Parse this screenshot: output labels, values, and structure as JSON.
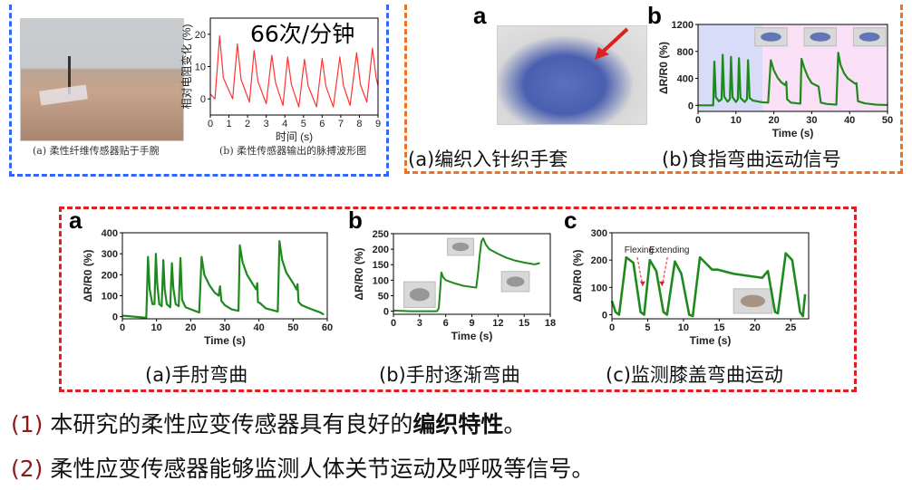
{
  "top_left": {
    "photo_caption": "(a) 柔性纤维传感器贴于手腕",
    "chart_caption": "(b) 柔性传感器输出的脉搏波形图",
    "rate_label": "66次/分钟",
    "border_color": "#3366ff"
  },
  "top_right": {
    "panel_a": "a",
    "panel_b": "b",
    "caption_a": "(a)编织入针织手套",
    "caption_b": "(b)食指弯曲运动信号",
    "border_color": "#f07020",
    "arrow_color": "#e02020"
  },
  "bottom_box": {
    "panel_a": "a",
    "panel_b": "b",
    "panel_c": "c",
    "caption_a": "(a)手肘弯曲",
    "caption_b": "(b)手肘逐渐弯曲",
    "caption_c": "(c)监测膝盖弯曲运动",
    "border_color": "#e02020"
  },
  "conclusions": [
    {
      "num": "(1)",
      "text_before": "本研究的柔性应变传感器具有良好的",
      "bold": "编织特性",
      "text_after": "。"
    },
    {
      "num": "(2)",
      "text_before": "柔性应变传感器能够监测人体关节运动及呼吸等信号。",
      "bold": "",
      "text_after": ""
    }
  ],
  "chart_data": [
    {
      "id": "pulse",
      "type": "line",
      "xlabel": "时间 (s)",
      "ylabel": "相对电阻变化 (%)",
      "xlim": [
        0,
        9
      ],
      "ylim": [
        -5,
        25
      ],
      "xticks": [
        0,
        1,
        2,
        3,
        4,
        5,
        6,
        7,
        8,
        9
      ],
      "yticks": [
        0,
        10,
        20
      ],
      "color": "#ff3333",
      "grid": false,
      "series": [
        {
          "points": [
            [
              0,
              1.5
            ],
            [
              0.25,
              0
            ],
            [
              0.5,
              19.5
            ],
            [
              0.7,
              6.5
            ],
            [
              1.2,
              0
            ],
            [
              1.45,
              17
            ],
            [
              1.65,
              6
            ],
            [
              2.1,
              -1
            ],
            [
              2.35,
              15
            ],
            [
              2.55,
              5.5
            ],
            [
              3.0,
              -1.5
            ],
            [
              3.3,
              13.5
            ],
            [
              3.5,
              5
            ],
            [
              3.9,
              -2
            ],
            [
              4.15,
              13
            ],
            [
              4.35,
              4.5
            ],
            [
              4.75,
              -2.5
            ],
            [
              5.05,
              12.3
            ],
            [
              5.25,
              4
            ],
            [
              5.7,
              -2.5
            ],
            [
              6.0,
              12.5
            ],
            [
              6.2,
              4
            ],
            [
              6.6,
              -2.5
            ],
            [
              6.95,
              13
            ],
            [
              7.15,
              4
            ],
            [
              7.5,
              -2
            ],
            [
              7.85,
              14.3
            ],
            [
              8.05,
              4.5
            ],
            [
              8.4,
              -1
            ],
            [
              8.7,
              15.7
            ],
            [
              8.9,
              6.5
            ],
            [
              9,
              4
            ]
          ]
        }
      ]
    },
    {
      "id": "finger",
      "type": "line",
      "xlabel": "Time (s)",
      "ylabel": "ΔR/R0 (%)",
      "xlim": [
        0,
        50
      ],
      "ylim": [
        -90,
        1200
      ],
      "xticks": [
        0,
        10,
        20,
        30,
        40,
        50
      ],
      "yticks": [
        0,
        400,
        800,
        1200
      ],
      "color": "#1e8a1e",
      "grid": false,
      "background_regions": [
        {
          "x": [
            0,
            17
          ],
          "color": "#d8dcf8"
        },
        {
          "x": [
            17,
            50
          ],
          "color": "#fae0f6"
        }
      ],
      "series": [
        {
          "points": [
            [
              0,
              0
            ],
            [
              4,
              0
            ],
            [
              4.3,
              650
            ],
            [
              4.7,
              120
            ],
            [
              5.5,
              60
            ],
            [
              6.2,
              90
            ],
            [
              6.5,
              750
            ],
            [
              6.9,
              130
            ],
            [
              7.8,
              55
            ],
            [
              8.4,
              90
            ],
            [
              8.7,
              720
            ],
            [
              9.1,
              120
            ],
            [
              10,
              50
            ],
            [
              10.5,
              90
            ],
            [
              10.8,
              700
            ],
            [
              11.2,
              110
            ],
            [
              12.3,
              50
            ],
            [
              12.9,
              90
            ],
            [
              13.2,
              670
            ],
            [
              13.6,
              110
            ],
            [
              14.5,
              70
            ],
            [
              17,
              45
            ],
            [
              18.5,
              40
            ],
            [
              19.2,
              670
            ],
            [
              20,
              520
            ],
            [
              21,
              410
            ],
            [
              22,
              340
            ],
            [
              23,
              300
            ],
            [
              23.3,
              350
            ],
            [
              23.5,
              90
            ],
            [
              24.5,
              40
            ],
            [
              27,
              25
            ],
            [
              27.3,
              690
            ],
            [
              28,
              560
            ],
            [
              29,
              420
            ],
            [
              30,
              330
            ],
            [
              31.8,
              280
            ],
            [
              32.4,
              40
            ],
            [
              34,
              20
            ],
            [
              36.5,
              10
            ],
            [
              37,
              780
            ],
            [
              37.6,
              600
            ],
            [
              38.5,
              480
            ],
            [
              39.5,
              400
            ],
            [
              41.5,
              320
            ],
            [
              41.8,
              330
            ],
            [
              42.2,
              60
            ],
            [
              44,
              30
            ],
            [
              47,
              10
            ],
            [
              50,
              5
            ]
          ]
        }
      ]
    },
    {
      "id": "elbow",
      "type": "line",
      "xlabel": "Time (s)",
      "ylabel": "ΔR/R0 (%)",
      "xlim": [
        0,
        60
      ],
      "ylim": [
        -10,
        400
      ],
      "xticks": [
        0,
        10,
        20,
        30,
        40,
        50,
        60
      ],
      "yticks": [
        0,
        100,
        200,
        300,
        400
      ],
      "color": "#1e8a1e",
      "grid": false,
      "series": [
        {
          "points": [
            [
              0,
              5
            ],
            [
              7,
              -5
            ],
            [
              7.5,
              285
            ],
            [
              8,
              130
            ],
            [
              8.8,
              60
            ],
            [
              9.4,
              60
            ],
            [
              9.8,
              300
            ],
            [
              10.2,
              160
            ],
            [
              10.8,
              60
            ],
            [
              11.5,
              50
            ],
            [
              12,
              270
            ],
            [
              12.4,
              130
            ],
            [
              13,
              60
            ],
            [
              14,
              45
            ],
            [
              14.5,
              255
            ],
            [
              14.9,
              140
            ],
            [
              15.6,
              60
            ],
            [
              16.5,
              50
            ],
            [
              17,
              280
            ],
            [
              17.5,
              80
            ],
            [
              18.5,
              45
            ],
            [
              22.5,
              20
            ],
            [
              23.2,
              285
            ],
            [
              24,
              200
            ],
            [
              25.5,
              150
            ],
            [
              27,
              115
            ],
            [
              28.2,
              100
            ],
            [
              28.6,
              145
            ],
            [
              29,
              75
            ],
            [
              30,
              55
            ],
            [
              32,
              35
            ],
            [
              34,
              28
            ],
            [
              34.4,
              340
            ],
            [
              35.2,
              260
            ],
            [
              36.5,
              200
            ],
            [
              38,
              160
            ],
            [
              39.2,
              130
            ],
            [
              39.5,
              160
            ],
            [
              39.7,
              70
            ],
            [
              40.3,
              65
            ],
            [
              42,
              40
            ],
            [
              45.5,
              25
            ],
            [
              46,
              360
            ],
            [
              46.8,
              270
            ],
            [
              48,
              210
            ],
            [
              50,
              160
            ],
            [
              51,
              130
            ],
            [
              51.3,
              155
            ],
            [
              51.6,
              70
            ],
            [
              52.5,
              55
            ],
            [
              55,
              38
            ],
            [
              58,
              20
            ],
            [
              59,
              10
            ]
          ]
        }
      ]
    },
    {
      "id": "elbow-gradual",
      "type": "line",
      "xlabel": "Time (s)",
      "ylabel": "ΔR/R0 (%)",
      "xlim": [
        0,
        18
      ],
      "ylim": [
        -10,
        250
      ],
      "xticks": [
        0,
        3,
        6,
        9,
        12,
        15,
        18
      ],
      "yticks": [
        0,
        50,
        100,
        150,
        200,
        250
      ],
      "color": "#1e8a1e",
      "grid": false,
      "series": [
        {
          "points": [
            [
              0,
              2
            ],
            [
              2,
              0
            ],
            [
              5,
              0
            ],
            [
              5.2,
              10
            ],
            [
              5.35,
              65
            ],
            [
              5.5,
              125
            ],
            [
              5.7,
              110
            ],
            [
              6,
              100
            ],
            [
              7,
              90
            ],
            [
              8,
              82
            ],
            [
              9.5,
              76
            ],
            [
              9.7,
              120
            ],
            [
              9.9,
              180
            ],
            [
              10.1,
              225
            ],
            [
              10.3,
              235
            ],
            [
              10.6,
              215
            ],
            [
              11,
              200
            ],
            [
              12,
              185
            ],
            [
              13,
              172
            ],
            [
              14,
              163
            ],
            [
              15,
              157
            ],
            [
              16.2,
              151
            ],
            [
              16.8,
              155
            ]
          ]
        }
      ]
    },
    {
      "id": "knee",
      "type": "line",
      "xlabel": "Time (s)",
      "ylabel": "ΔR/R0 (%)",
      "xlim": [
        0,
        27.5
      ],
      "ylim": [
        -15,
        300
      ],
      "xticks": [
        0,
        5,
        10,
        15,
        20,
        25
      ],
      "yticks": [
        0,
        100,
        200,
        300
      ],
      "color": "#1e8a1e",
      "grid": false,
      "annotations": [
        {
          "text": "Flexing",
          "x": 4.3,
          "y": 105
        },
        {
          "text": "Extending",
          "x": 7,
          "y": 105
        }
      ],
      "series": [
        {
          "points": [
            [
              0,
              50
            ],
            [
              0.5,
              10
            ],
            [
              1,
              0
            ],
            [
              2,
              210
            ],
            [
              3,
              190
            ],
            [
              4,
              10
            ],
            [
              4.5,
              0
            ],
            [
              5.3,
              200
            ],
            [
              6.2,
              160
            ],
            [
              7.2,
              10
            ],
            [
              7.7,
              0
            ],
            [
              8.8,
              195
            ],
            [
              9.7,
              150
            ],
            [
              10.8,
              0
            ],
            [
              11.3,
              -5
            ],
            [
              12.3,
              210
            ],
            [
              14,
              165
            ],
            [
              14.8,
              165
            ],
            [
              17,
              150
            ],
            [
              21,
              135
            ],
            [
              21.8,
              160
            ],
            [
              22.8,
              10
            ],
            [
              23.2,
              5
            ],
            [
              24.3,
              225
            ],
            [
              25.2,
              200
            ],
            [
              26.3,
              10
            ],
            [
              26.7,
              -5
            ],
            [
              27,
              75
            ]
          ]
        }
      ]
    }
  ]
}
